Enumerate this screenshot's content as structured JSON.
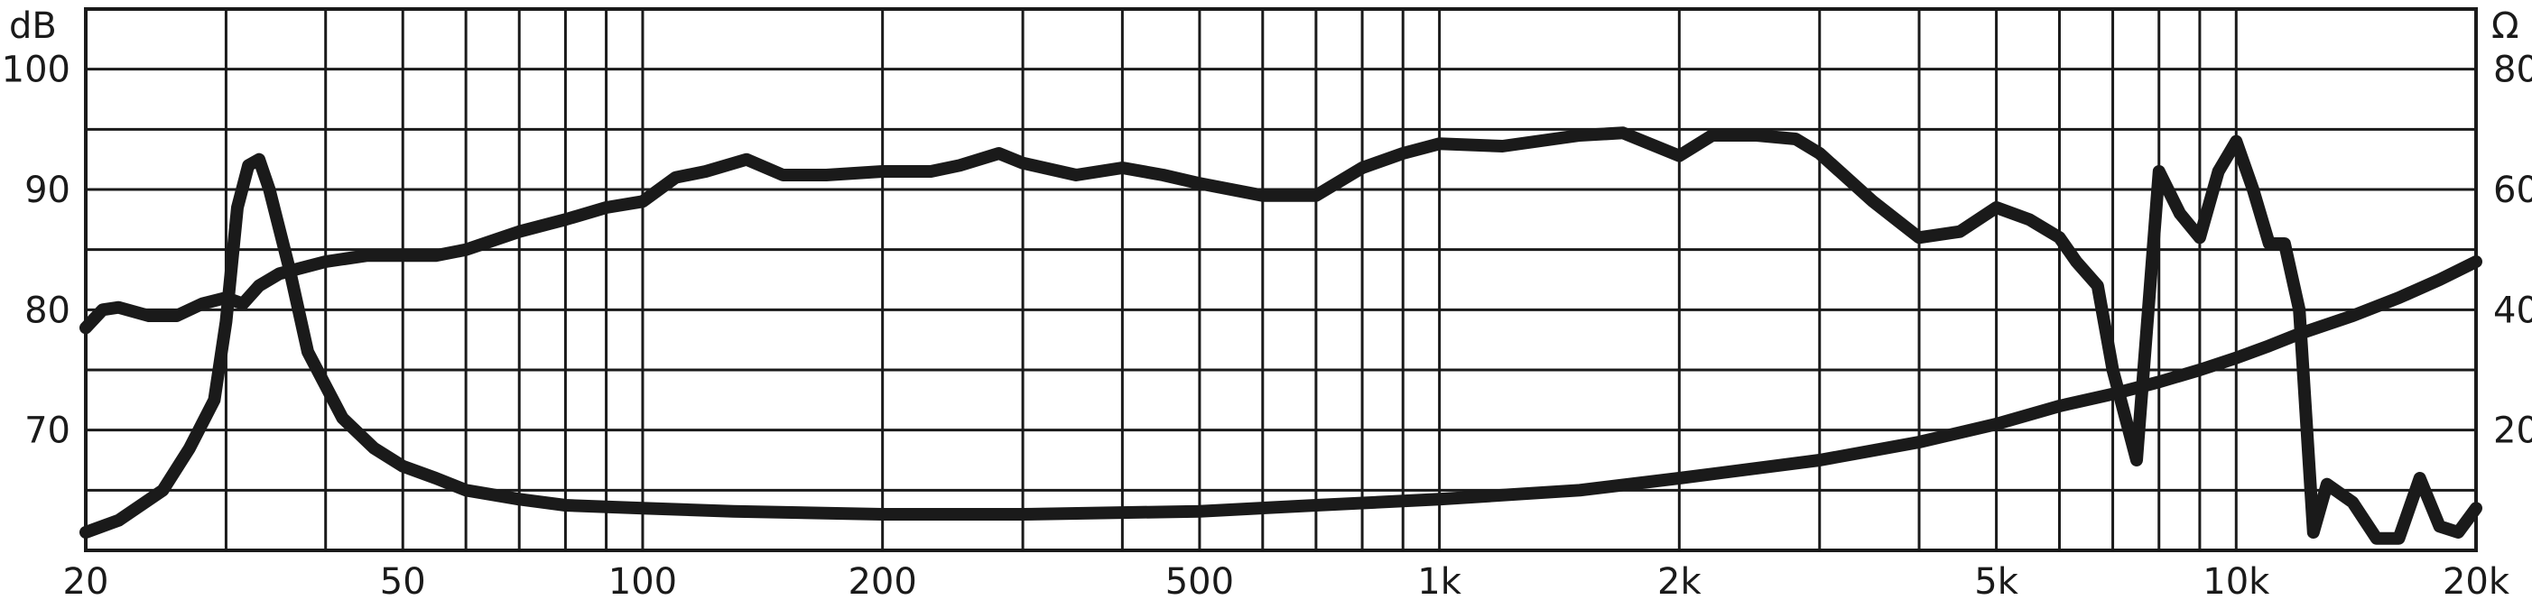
{
  "chart_data": {
    "type": "line",
    "title": "",
    "xscale": "log",
    "xlim": [
      20,
      20000
    ],
    "x_ticks": [
      {
        "value": 20,
        "label": "20"
      },
      {
        "value": 50,
        "label": "50"
      },
      {
        "value": 100,
        "label": "100"
      },
      {
        "value": 200,
        "label": "200"
      },
      {
        "value": 500,
        "label": "500"
      },
      {
        "value": 1000,
        "label": "1k"
      },
      {
        "value": 2000,
        "label": "2k"
      },
      {
        "value": 5000,
        "label": "5k"
      },
      {
        "value": 10000,
        "label": "10k"
      },
      {
        "value": 20000,
        "label": "20k"
      }
    ],
    "y_left": {
      "unit": "dB",
      "lim": [
        60,
        105
      ],
      "ticks": [
        {
          "value": 70,
          "label": "70"
        },
        {
          "value": 80,
          "label": "80"
        },
        {
          "value": 90,
          "label": "90"
        },
        {
          "value": 100,
          "label": "100"
        }
      ]
    },
    "y_right": {
      "unit": "Ω",
      "lim": [
        0,
        90
      ],
      "ticks": [
        {
          "value": 20,
          "label": "20"
        },
        {
          "value": 40,
          "label": "40"
        },
        {
          "value": 60,
          "label": "60"
        },
        {
          "value": 80,
          "label": "80"
        }
      ]
    },
    "grid": true,
    "legend": "none",
    "series": [
      {
        "axis": "left",
        "x": [
          20,
          21,
          22,
          24,
          26,
          28,
          30,
          31.5,
          33,
          35,
          40,
          45,
          50,
          55,
          60,
          70,
          80,
          90,
          100,
          110,
          120,
          135,
          150,
          170,
          200,
          230,
          250,
          280,
          300,
          350,
          400,
          450,
          500,
          600,
          700,
          800,
          900,
          1000,
          1200,
          1500,
          1700,
          2000,
          2200,
          2500,
          2800,
          3000,
          3500,
          4000,
          4500,
          5000,
          5500,
          6000,
          6300,
          6700,
          7000,
          7500,
          8000,
          8500,
          9000,
          9500,
          10000,
          10500,
          11000,
          11500,
          12000,
          12500,
          13000,
          14000,
          15000,
          16000,
          17000,
          18000,
          19000,
          20000
        ],
        "y": [
          78.5,
          80.0,
          80.2,
          79.5,
          79.5,
          80.5,
          81.0,
          80.5,
          82.0,
          83.0,
          84.0,
          84.5,
          84.5,
          84.5,
          85.0,
          86.5,
          87.5,
          88.5,
          89.0,
          91.0,
          91.5,
          92.5,
          91.2,
          91.2,
          91.5,
          91.5,
          92.0,
          93.0,
          92.2,
          91.2,
          91.8,
          91.2,
          90.5,
          89.5,
          89.5,
          91.8,
          93.0,
          93.8,
          93.6,
          94.5,
          94.7,
          92.8,
          94.5,
          94.5,
          94.2,
          93.0,
          89.0,
          86.0,
          86.5,
          88.5,
          87.5,
          86.0,
          84.0,
          82.0,
          75.0,
          67.5,
          91.5,
          88.0,
          86.0,
          91.5,
          94.0,
          90.0,
          85.5,
          85.5,
          80.0,
          61.5,
          65.5,
          64.0,
          61.0,
          61.0,
          66.0,
          62.0,
          61.5,
          63.5
        ]
      },
      {
        "axis": "right",
        "x": [
          20,
          22,
          25,
          27,
          29,
          30,
          31,
          32,
          33,
          34,
          36,
          38,
          42,
          46,
          50,
          55,
          60,
          70,
          80,
          100,
          130,
          200,
          300,
          500,
          700,
          1000,
          1500,
          2000,
          3000,
          4000,
          5000,
          6000,
          7000,
          8000,
          9000,
          10000,
          11000,
          12000,
          14000,
          16000,
          18000,
          20000
        ],
        "y": [
          3.0,
          5.0,
          10.0,
          17.0,
          25.0,
          38.0,
          57.0,
          64.0,
          65.0,
          60.0,
          47.0,
          33.0,
          22.0,
          17.0,
          14.0,
          12.0,
          10.0,
          8.5,
          7.5,
          7.0,
          6.5,
          6.0,
          6.0,
          6.5,
          7.5,
          8.5,
          10.0,
          12.0,
          15.0,
          18.0,
          21.0,
          24.0,
          26.0,
          28.0,
          30.0,
          32.0,
          34.0,
          36.0,
          39.0,
          42.0,
          45.0,
          48.0
        ]
      }
    ]
  }
}
